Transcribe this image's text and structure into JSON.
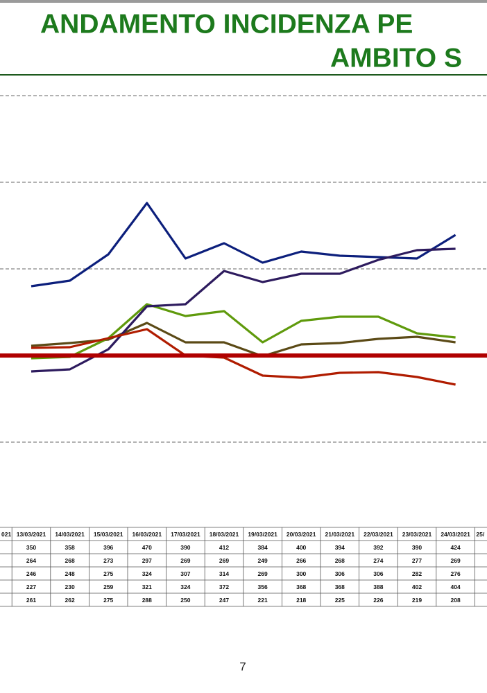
{
  "chart_data": {
    "type": "line",
    "title": [
      "ANDAMENTO INCIDENZA PE",
      "AMBITO S"
    ],
    "categories": [
      "021",
      "13/03/2021",
      "14/03/2021",
      "15/03/2021",
      "16/03/2021",
      "17/03/2021",
      "18/03/2021",
      "19/03/2021",
      "20/03/2021",
      "21/03/2021",
      "22/03/2021",
      "23/03/2021",
      "24/03/2021",
      "25/"
    ],
    "series": [
      {
        "color": "#0c1f7c",
        "values": [
          null,
          350,
          358,
          396,
          470,
          390,
          412,
          384,
          400,
          394,
          392,
          390,
          424,
          null
        ]
      },
      {
        "color": "#5b4a16",
        "values": [
          null,
          264,
          268,
          273,
          297,
          269,
          269,
          249,
          266,
          268,
          274,
          277,
          269,
          null
        ]
      },
      {
        "color": "#5f9a0c",
        "values": [
          null,
          246,
          248,
          275,
          324,
          307,
          314,
          269,
          300,
          306,
          306,
          282,
          276,
          null
        ]
      },
      {
        "color": "#2d1b5e",
        "values": [
          null,
          227,
          230,
          259,
          321,
          324,
          372,
          356,
          368,
          368,
          388,
          402,
          404,
          null
        ]
      },
      {
        "color": "#b01c00",
        "values": [
          null,
          261,
          262,
          275,
          288,
          250,
          247,
          221,
          218,
          225,
          226,
          219,
          208,
          null
        ]
      }
    ],
    "threshold": {
      "value": 250,
      "color": "#b00000"
    },
    "ylim": [
      0,
      650
    ],
    "yticks": [
      125,
      250,
      375,
      500,
      625
    ],
    "grid": true,
    "page_number": "7"
  }
}
